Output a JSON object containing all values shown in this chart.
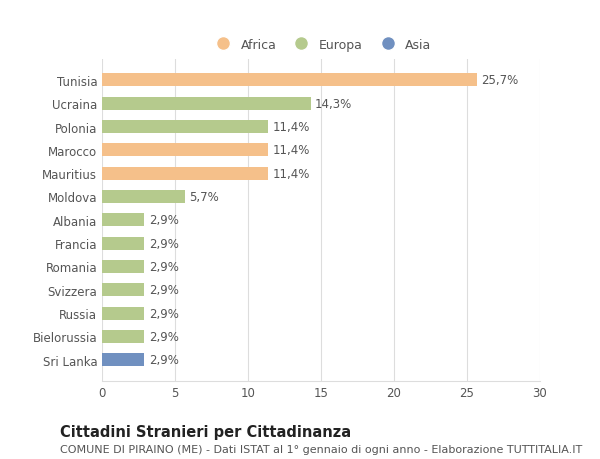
{
  "categories": [
    "Tunisia",
    "Ucraina",
    "Polonia",
    "Marocco",
    "Mauritius",
    "Moldova",
    "Albania",
    "Francia",
    "Romania",
    "Svizzera",
    "Russia",
    "Bielorussia",
    "Sri Lanka"
  ],
  "values": [
    25.7,
    14.3,
    11.4,
    11.4,
    11.4,
    5.7,
    2.9,
    2.9,
    2.9,
    2.9,
    2.9,
    2.9,
    2.9
  ],
  "labels": [
    "25,7%",
    "14,3%",
    "11,4%",
    "11,4%",
    "11,4%",
    "5,7%",
    "2,9%",
    "2,9%",
    "2,9%",
    "2,9%",
    "2,9%",
    "2,9%",
    "2,9%"
  ],
  "colors": [
    "#f5c08a",
    "#b5ca8d",
    "#b5ca8d",
    "#f5c08a",
    "#f5c08a",
    "#b5ca8d",
    "#b5ca8d",
    "#b5ca8d",
    "#b5ca8d",
    "#b5ca8d",
    "#b5ca8d",
    "#b5ca8d",
    "#7090c0"
  ],
  "legend_labels": [
    "Africa",
    "Europa",
    "Asia"
  ],
  "legend_colors": [
    "#f5c08a",
    "#b5ca8d",
    "#7090c0"
  ],
  "xlim": [
    0,
    30
  ],
  "xticks": [
    0,
    5,
    10,
    15,
    20,
    25,
    30
  ],
  "title": "Cittadini Stranieri per Cittadinanza",
  "subtitle": "COMUNE DI PIRAINO (ME) - Dati ISTAT al 1° gennaio di ogni anno - Elaborazione TUTTITALIA.IT",
  "bg_color": "#ffffff",
  "bar_height": 0.55,
  "label_fontsize": 8.5,
  "title_fontsize": 10.5,
  "subtitle_fontsize": 8,
  "tick_fontsize": 8.5,
  "legend_fontsize": 9,
  "grid_color": "#dddddd",
  "text_color": "#555555"
}
